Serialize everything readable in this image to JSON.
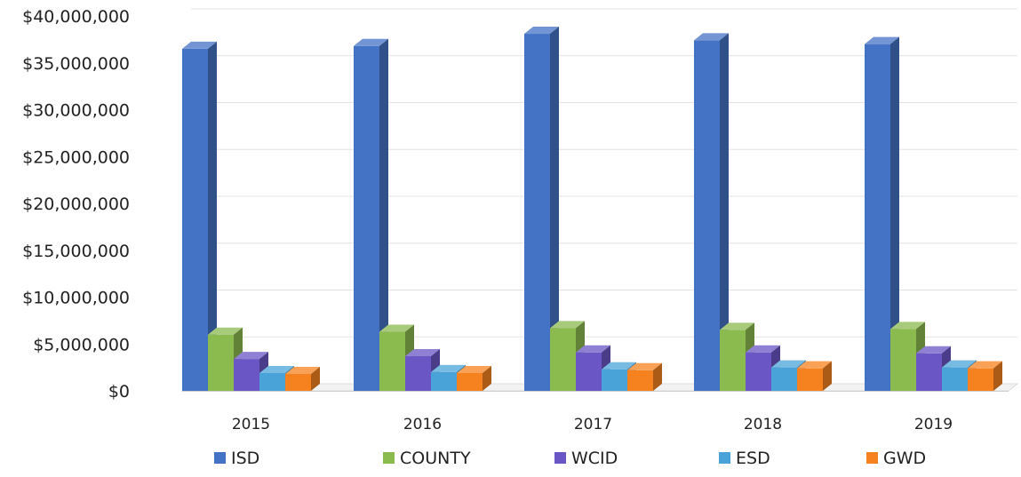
{
  "chart_data": {
    "type": "bar",
    "style": "3d-clustered-column",
    "categories": [
      "2015",
      "2016",
      "2017",
      "2018",
      "2019"
    ],
    "series": [
      {
        "name": "ISD",
        "color": "#4472C4",
        "values": [
          36500000,
          36800000,
          38100000,
          37400000,
          37000000
        ]
      },
      {
        "name": "COUNTY",
        "color": "#8BBA4F",
        "values": [
          6000000,
          6300000,
          6700000,
          6500000,
          6600000
        ]
      },
      {
        "name": "WCID",
        "color": "#6A56C4",
        "values": [
          3400000,
          3700000,
          4100000,
          4100000,
          4000000
        ]
      },
      {
        "name": "ESD",
        "color": "#4AA3D8",
        "values": [
          1900000,
          2000000,
          2300000,
          2500000,
          2500000
        ]
      },
      {
        "name": "GWD",
        "color": "#F5821F",
        "values": [
          1800000,
          1900000,
          2200000,
          2400000,
          2400000
        ]
      }
    ],
    "yticks": [
      "$0",
      "$5,000,000",
      "$10,000,000",
      "$15,000,000",
      "$20,000,000",
      "$25,000,000",
      "$30,000,000",
      "$35,000,000",
      "$40,000,000"
    ],
    "ylim": [
      0,
      40000000
    ],
    "grid": true,
    "legend": "bottom"
  }
}
